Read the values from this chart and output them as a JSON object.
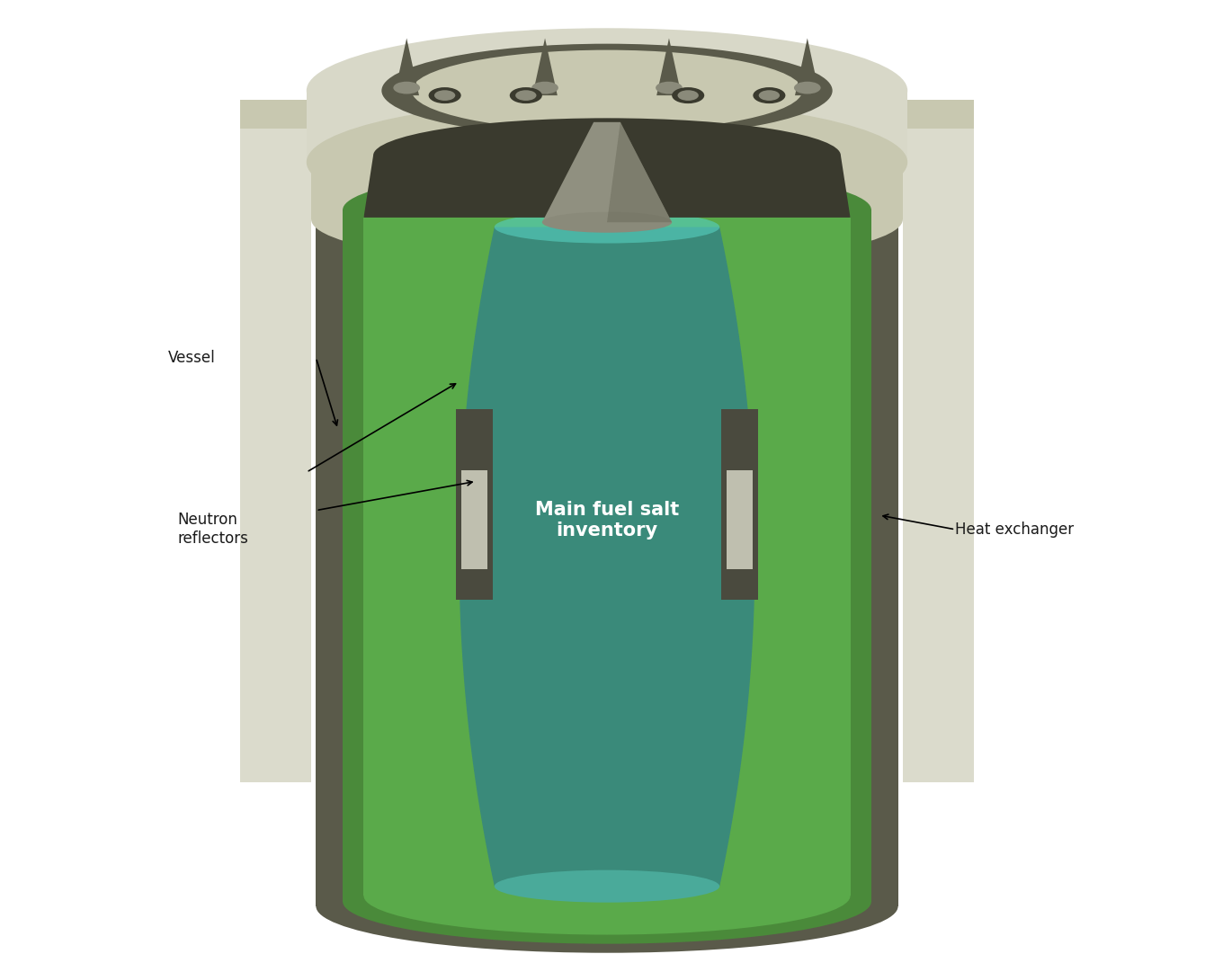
{
  "background_color": "#ffffff",
  "labels": {
    "main_fuel": "Main fuel salt\ninventory",
    "neutron_reflectors": "Neutron\nreflectors",
    "vessel": "Vessel",
    "heat_exchanger": "Heat exchanger"
  },
  "colors": {
    "outer_vessel": "#5a5a4a",
    "vessel_metal": "#8a8a7a",
    "vessel_rim": "#c8c8b0",
    "inner_dark": "#3a3a2e",
    "green_outer": "#4a8a3a",
    "green_inner": "#5aaa4a",
    "green_bright": "#66cc44",
    "teal_main": "#3a8a7a",
    "teal_light": "#4aaa9a",
    "teal_bright": "#55ccbb",
    "reflector_gray": "#4a4a3e",
    "reflector_white": "#d0d0c0",
    "top_metal": "#b0b0a0",
    "top_light": "#d8d8c8",
    "spike_dark": "#5a5a4a",
    "center_cone": "#909080",
    "white_text": "#ffffff",
    "dark_text": "#1a1a1a"
  }
}
